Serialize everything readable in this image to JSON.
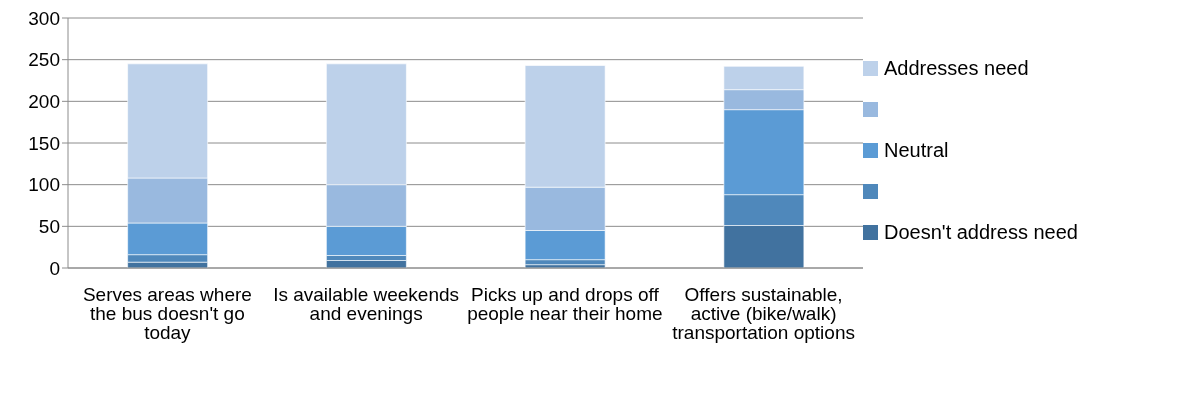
{
  "chart_data": {
    "type": "bar",
    "stacked": true,
    "categories": [
      "Serves areas where the bus doesn't go today",
      "Is available weekends and evenings",
      "Picks up and drops off people near their home",
      "Offers sustainable, active (bike/walk) transportation options"
    ],
    "series": [
      {
        "name": "Doesn't address need",
        "color": "#41729f",
        "values": [
          7,
          9,
          4,
          51
        ]
      },
      {
        "color": "#4f88bb",
        "values": [
          9,
          6,
          6,
          37
        ]
      },
      {
        "name": "Neutral",
        "color": "#5b9bd5",
        "values": [
          38,
          35,
          35,
          102
        ]
      },
      {
        "color": "#99b9df",
        "values": [
          54,
          50,
          52,
          24
        ]
      },
      {
        "name": "Addresses need",
        "color": "#bdd1ea",
        "values": [
          137,
          145,
          146,
          28
        ]
      }
    ],
    "ylim": [
      0,
      300
    ],
    "yticks": [
      0,
      50,
      100,
      150,
      200,
      250,
      300
    ],
    "grid": "y",
    "legend": "right"
  }
}
